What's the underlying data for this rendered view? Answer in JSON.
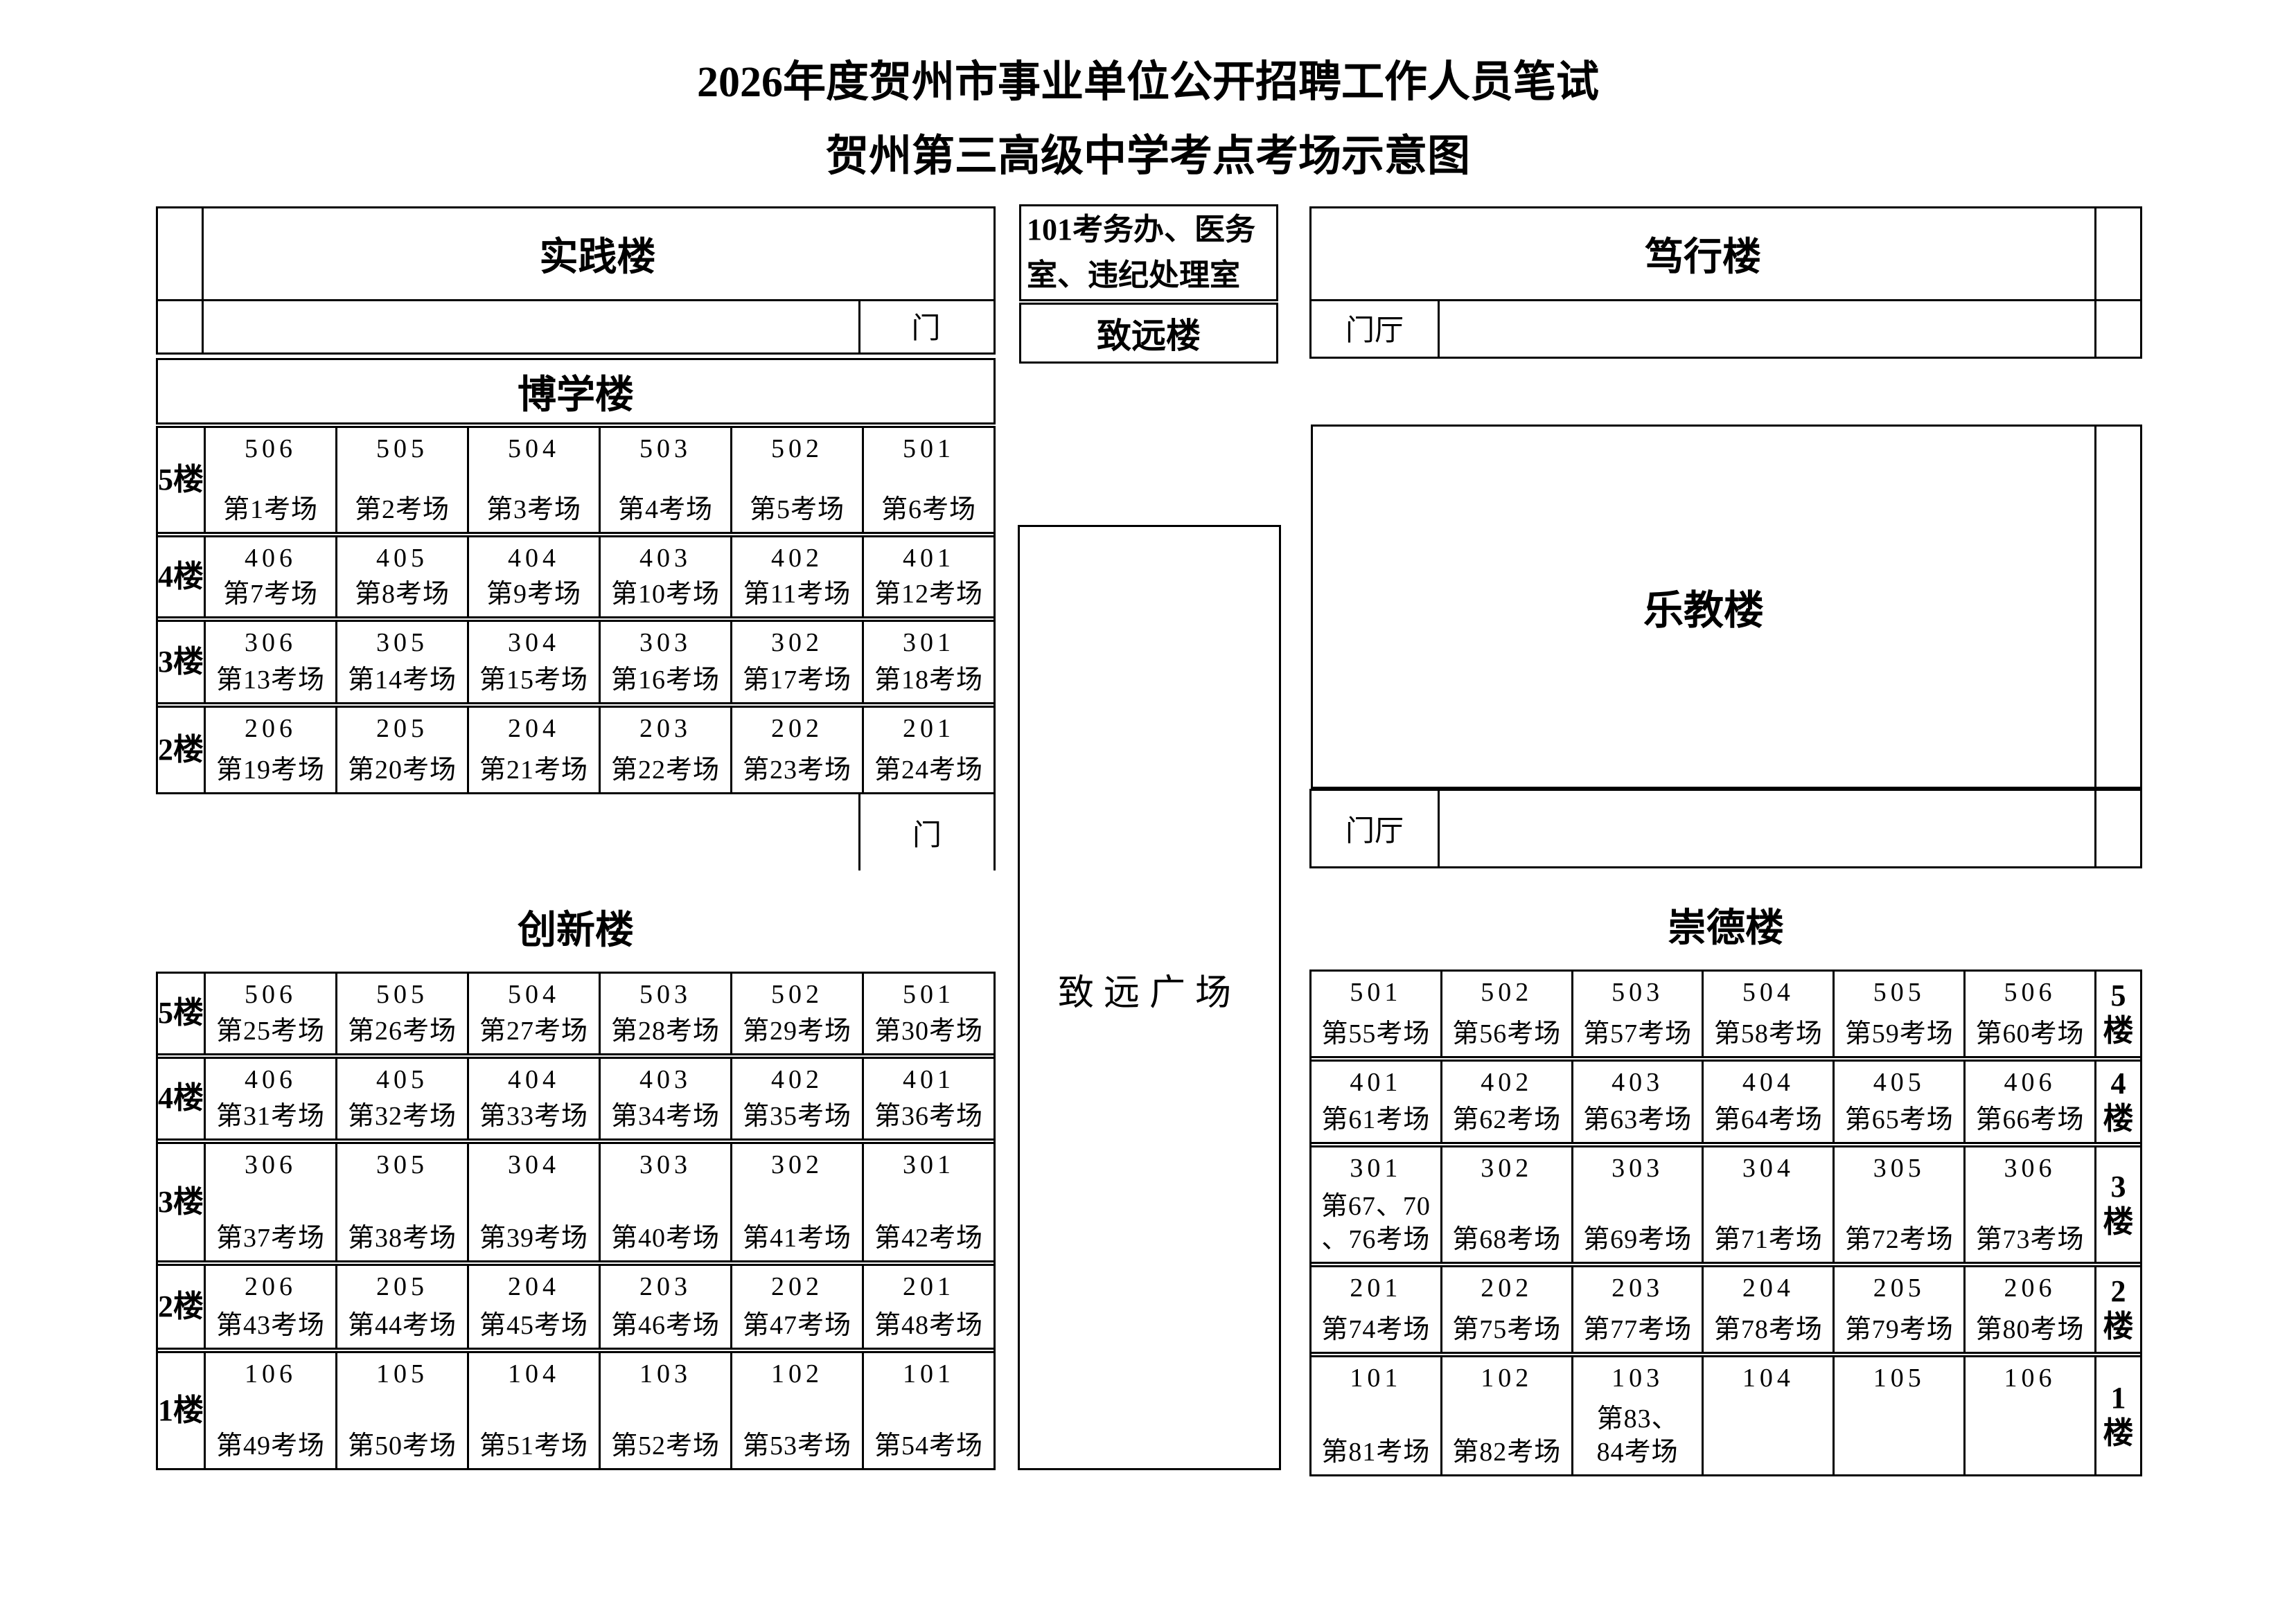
{
  "colors": {
    "ink": "#000000",
    "paper": "#ffffff"
  },
  "title": {
    "line1": "2026年度贺州市事业单位公开招聘工作人员笔试",
    "line2": "贺州第三高级中学考点考场示意图"
  },
  "areas": {
    "shijian": "实践楼",
    "gate": "门",
    "office": "101考务办、医务\n室、违纪处理室",
    "zhiyuan_lou": "致远楼",
    "duxing": "笃行楼",
    "foyer": "门厅",
    "lejiao": "乐教楼",
    "plaza": "致远广场",
    "boxue": "博学楼",
    "chuangxin": "创新楼",
    "chongde": "崇德楼"
  },
  "buildings": [
    {
      "id": "boxue",
      "name": "博学楼",
      "floor_side": "left",
      "floors": [
        {
          "label": "5楼",
          "rooms": [
            [
              "506",
              "第1考场"
            ],
            [
              "505",
              "第2考场"
            ],
            [
              "504",
              "第3考场"
            ],
            [
              "503",
              "第4考场"
            ],
            [
              "502",
              "第5考场"
            ],
            [
              "501",
              "第6考场"
            ]
          ]
        },
        {
          "label": "4楼",
          "rooms": [
            [
              "406",
              "第7考场"
            ],
            [
              "405",
              "第8考场"
            ],
            [
              "404",
              "第9考场"
            ],
            [
              "403",
              "第10考场"
            ],
            [
              "402",
              "第11考场"
            ],
            [
              "401",
              "第12考场"
            ]
          ]
        },
        {
          "label": "3楼",
          "rooms": [
            [
              "306",
              "第13考场"
            ],
            [
              "305",
              "第14考场"
            ],
            [
              "304",
              "第15考场"
            ],
            [
              "303",
              "第16考场"
            ],
            [
              "302",
              "第17考场"
            ],
            [
              "301",
              "第18考场"
            ]
          ]
        },
        {
          "label": "2楼",
          "rooms": [
            [
              "206",
              "第19考场"
            ],
            [
              "205",
              "第20考场"
            ],
            [
              "204",
              "第21考场"
            ],
            [
              "203",
              "第22考场"
            ],
            [
              "202",
              "第23考场"
            ],
            [
              "201",
              "第24考场"
            ]
          ]
        }
      ]
    },
    {
      "id": "chuangxin",
      "name": "创新楼",
      "floor_side": "left",
      "floors": [
        {
          "label": "5楼",
          "rooms": [
            [
              "506",
              "第25考场"
            ],
            [
              "505",
              "第26考场"
            ],
            [
              "504",
              "第27考场"
            ],
            [
              "503",
              "第28考场"
            ],
            [
              "502",
              "第29考场"
            ],
            [
              "501",
              "第30考场"
            ]
          ]
        },
        {
          "label": "4楼",
          "rooms": [
            [
              "406",
              "第31考场"
            ],
            [
              "405",
              "第32考场"
            ],
            [
              "404",
              "第33考场"
            ],
            [
              "403",
              "第34考场"
            ],
            [
              "402",
              "第35考场"
            ],
            [
              "401",
              "第36考场"
            ]
          ]
        },
        {
          "label": "3楼",
          "rooms": [
            [
              "306",
              "第37考场"
            ],
            [
              "305",
              "第38考场"
            ],
            [
              "304",
              "第39考场"
            ],
            [
              "303",
              "第40考场"
            ],
            [
              "302",
              "第41考场"
            ],
            [
              "301",
              "第42考场"
            ]
          ]
        },
        {
          "label": "2楼",
          "rooms": [
            [
              "206",
              "第43考场"
            ],
            [
              "205",
              "第44考场"
            ],
            [
              "204",
              "第45考场"
            ],
            [
              "203",
              "第46考场"
            ],
            [
              "202",
              "第47考场"
            ],
            [
              "201",
              "第48考场"
            ]
          ]
        },
        {
          "label": "1楼",
          "rooms": [
            [
              "106",
              "第49考场"
            ],
            [
              "105",
              "第50考场"
            ],
            [
              "104",
              "第51考场"
            ],
            [
              "103",
              "第52考场"
            ],
            [
              "102",
              "第53考场"
            ],
            [
              "101",
              "第54考场"
            ]
          ]
        }
      ]
    },
    {
      "id": "chongde",
      "name": "崇德楼",
      "floor_side": "right",
      "floors": [
        {
          "label": "5楼",
          "rooms": [
            [
              "501",
              "第55考场"
            ],
            [
              "502",
              "第56考场"
            ],
            [
              "503",
              "第57考场"
            ],
            [
              "504",
              "第58考场"
            ],
            [
              "505",
              "第59考场"
            ],
            [
              "506",
              "第60考场"
            ]
          ]
        },
        {
          "label": "4楼",
          "rooms": [
            [
              "401",
              "第61考场"
            ],
            [
              "402",
              "第62考场"
            ],
            [
              "403",
              "第63考场"
            ],
            [
              "404",
              "第64考场"
            ],
            [
              "405",
              "第65考场"
            ],
            [
              "406",
              "第66考场"
            ]
          ]
        },
        {
          "label": "3楼",
          "rooms": [
            [
              "301",
              "第67、70\n、76考场"
            ],
            [
              "302",
              "第68考场"
            ],
            [
              "303",
              "第69考场"
            ],
            [
              "304",
              "第71考场"
            ],
            [
              "305",
              "第72考场"
            ],
            [
              "306",
              "第73考场"
            ]
          ]
        },
        {
          "label": "2楼",
          "rooms": [
            [
              "201",
              "第74考场"
            ],
            [
              "202",
              "第75考场"
            ],
            [
              "203",
              "第77考场"
            ],
            [
              "204",
              "第78考场"
            ],
            [
              "205",
              "第79考场"
            ],
            [
              "206",
              "第80考场"
            ]
          ]
        },
        {
          "label": "1楼",
          "rooms": [
            [
              "101",
              "第81考场"
            ],
            [
              "102",
              "第82考场"
            ],
            [
              "103",
              "第83、\n84考场"
            ],
            [
              "104",
              ""
            ],
            [
              "105",
              ""
            ],
            [
              "106",
              ""
            ]
          ]
        }
      ]
    }
  ]
}
